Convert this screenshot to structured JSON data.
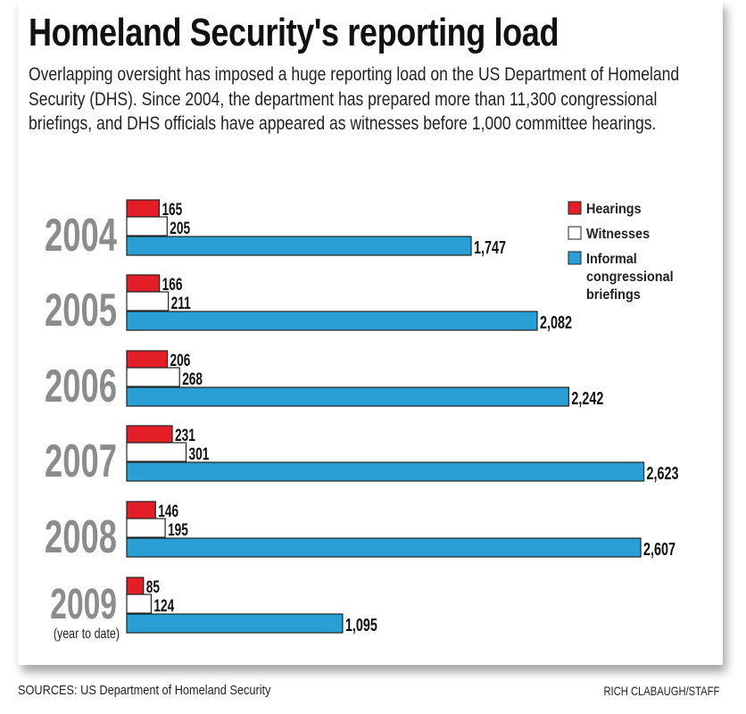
{
  "chart_data": {
    "type": "bar",
    "orientation": "horizontal",
    "title": "Homeland Security's reporting load",
    "subtitle": "Overlapping oversight has imposed a huge reporting load on the US Department of Homeland Security (DHS). Since 2004, the department has prepared more than 11,300 congressional briefings, and DHS officials have appeared as witnesses before 1,000 committee hearings.",
    "categories": [
      "2004",
      "2005",
      "2006",
      "2007",
      "2008",
      "2009"
    ],
    "category_notes": [
      "",
      "",
      "",
      "",
      "",
      "(year to date)"
    ],
    "series": [
      {
        "name": "Hearings",
        "color": "#e31e26",
        "values": [
          165,
          166,
          206,
          231,
          146,
          85
        ],
        "labels": [
          "165",
          "166",
          "206",
          "231",
          "146",
          "85"
        ]
      },
      {
        "name": "Witnesses",
        "color": "#ffffff",
        "values": [
          205,
          211,
          268,
          301,
          195,
          124
        ],
        "labels": [
          "205",
          "211",
          "268",
          "301",
          "195",
          "124"
        ]
      },
      {
        "name": "Informal congressional briefings",
        "color": "#2a9fd6",
        "values": [
          1747,
          2082,
          2242,
          2623,
          2607,
          1095
        ],
        "labels": [
          "1,747",
          "2,082",
          "2,242",
          "2,623",
          "2,607",
          "1,095"
        ]
      }
    ],
    "legend": {
      "placement": "top-right",
      "lines": [
        [
          "Hearings"
        ],
        [
          "Witnesses"
        ],
        [
          "Informal",
          "congressional",
          "briefings"
        ]
      ]
    },
    "xlim": [
      0,
      2700
    ],
    "grid": false
  },
  "footer": {
    "source": "SOURCES: US Department of Homeland Security",
    "credit": "RICH CLABAUGH/STAFF"
  }
}
